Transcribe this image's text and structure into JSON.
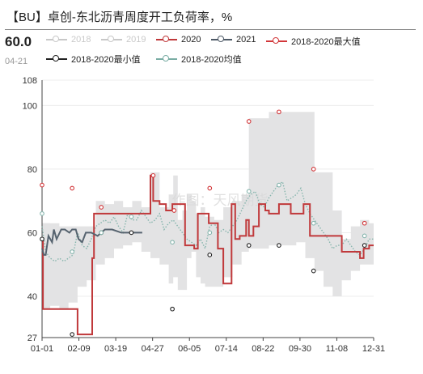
{
  "header": {
    "title": "【BU】卓创-东北沥青周度开工负荷率，%",
    "current_value": "60.0",
    "current_date": "04-21"
  },
  "legend": [
    {
      "label": "2018",
      "color": "#c8c8c8",
      "active": false
    },
    {
      "label": "2019",
      "color": "#c8c8c8",
      "active": false
    },
    {
      "label": "2020",
      "color": "#c0393b",
      "active": true
    },
    {
      "label": "2021",
      "color": "#4d5966",
      "active": true
    },
    {
      "label": "2018-2020最大值",
      "color": "#d2373a",
      "active": true
    },
    {
      "label": "2018-2020最小值",
      "color": "#222222",
      "active": true
    },
    {
      "label": "2018-2020均值",
      "color": "#7aada4",
      "active": true
    }
  ],
  "watermark": "作图：天风期货",
  "colors": {
    "band": "#e3e3e4",
    "s2020": "#c0393b",
    "s2021": "#56636f",
    "mean": "#86b5ad",
    "max_marker": "#d2373a",
    "min_marker": "#222222"
  },
  "chart_data": {
    "type": "line",
    "title": "【BU】卓创-东北沥青周度开工负荷率，%",
    "x_ticks": [
      "01-01",
      "02-09",
      "03-19",
      "04-27",
      "06-05",
      "07-14",
      "08-22",
      "09-30",
      "11-08",
      "12-31"
    ],
    "y_ticks": [
      27,
      40,
      60,
      80,
      100,
      108
    ],
    "ylim": [
      27,
      108
    ],
    "x_unit": "day of year (1 = 01-01, 365 = 12-31)",
    "series": [
      {
        "name": "2020",
        "style": "step-line",
        "x": [
          1,
          2,
          30,
          40,
          47,
          56,
          58,
          88,
          120,
          123,
          130,
          137,
          144,
          158,
          168,
          172,
          184,
          194,
          200,
          209,
          213,
          218,
          225,
          228,
          233,
          239,
          246,
          250,
          261,
          268,
          274,
          288,
          295,
          306,
          316,
          330,
          338,
          350,
          354,
          360,
          365
        ],
        "values": [
          58,
          36,
          36,
          28,
          28,
          52,
          66,
          66,
          78,
          70,
          69,
          67,
          69,
          56,
          55,
          66,
          63,
          55,
          44,
          69,
          58,
          59,
          64,
          59,
          62,
          69,
          67,
          66,
          69,
          69,
          66,
          69,
          59,
          59,
          59,
          54,
          54,
          52,
          55,
          56,
          56
        ]
      },
      {
        "name": "2021",
        "style": "line",
        "x": [
          1,
          3,
          5,
          8,
          12,
          14,
          17,
          22,
          26,
          31,
          34,
          38,
          41,
          45,
          49,
          55,
          62,
          70,
          78,
          88,
          96,
          103,
          111
        ],
        "values": [
          55,
          53,
          53,
          59,
          57,
          61,
          58,
          61,
          61,
          60,
          61,
          61,
          58,
          57,
          60,
          60,
          59,
          61,
          61,
          60,
          60,
          60,
          60
        ]
      },
      {
        "name": "2018-2020均值",
        "style": "dotted",
        "x": [
          1,
          5,
          10,
          15,
          20,
          25,
          30,
          35,
          40,
          45,
          50,
          55,
          60,
          65,
          70,
          75,
          80,
          85,
          90,
          95,
          100,
          105,
          110,
          115,
          120,
          125,
          130,
          135,
          140,
          145,
          150,
          155,
          160,
          165,
          170,
          175,
          180,
          185,
          190,
          195,
          200,
          205,
          210,
          215,
          220,
          225,
          230,
          235,
          240,
          245,
          250,
          255,
          260,
          265,
          270,
          275,
          280,
          285,
          290,
          295,
          300,
          305,
          310,
          315,
          320,
          325,
          330,
          335,
          340,
          345,
          350,
          355,
          360,
          365
        ],
        "values": [
          62,
          54,
          52,
          51,
          52,
          51,
          52,
          53,
          60,
          56,
          55,
          58,
          62,
          63,
          64,
          63,
          65,
          62,
          60,
          66,
          64,
          64,
          67,
          65,
          63,
          64,
          66,
          61,
          63,
          64,
          62,
          60,
          58,
          57,
          56,
          58,
          55,
          62,
          63,
          60,
          61,
          60,
          62,
          64,
          67,
          70,
          72,
          73,
          69,
          68,
          71,
          73,
          75,
          76,
          70,
          71,
          72,
          74,
          69,
          66,
          64,
          62,
          60,
          58,
          55,
          56,
          56,
          58,
          56,
          54,
          53,
          55,
          58,
          58
        ]
      }
    ],
    "band": {
      "name": "2018-2020 range",
      "x": [
        1,
        10,
        20,
        30,
        40,
        50,
        60,
        70,
        80,
        90,
        100,
        110,
        120,
        125,
        130,
        140,
        145,
        150,
        155,
        160,
        165,
        170,
        175,
        180,
        190,
        200,
        210,
        220,
        228,
        235,
        240,
        250,
        260,
        270,
        280,
        290,
        300,
        310,
        320,
        330,
        340,
        350,
        360,
        365
      ],
      "high": [
        63,
        63,
        62,
        62,
        62,
        62,
        70,
        69,
        70,
        68,
        70,
        68,
        79,
        79,
        68,
        72,
        78,
        64,
        67,
        72,
        70,
        66,
        68,
        65,
        64,
        68,
        70,
        72,
        96,
        96,
        96,
        98,
        98,
        98,
        98,
        98,
        79,
        79,
        67,
        58,
        62,
        64,
        63,
        63
      ],
      "low": [
        35,
        36,
        37,
        36,
        38,
        43,
        45,
        50,
        52,
        55,
        56,
        57,
        54,
        52,
        52,
        50,
        44,
        46,
        42,
        42,
        52,
        54,
        46,
        44,
        43,
        43,
        46,
        50,
        54,
        55,
        55,
        55,
        56,
        56,
        56,
        57,
        52,
        48,
        43,
        40,
        45,
        48,
        50,
        50
      ]
    },
    "markers": [
      {
        "series": "2018-2020最大值",
        "x": [
          1,
          34,
          66,
          123,
          146,
          185,
          228,
          261,
          299,
          355
        ],
        "values": [
          75,
          74,
          68,
          78,
          67,
          74,
          95,
          98,
          80,
          63
        ]
      },
      {
        "series": "2018-2020最小值",
        "x": [
          1,
          34,
          66,
          99,
          144,
          185,
          228,
          261,
          299,
          355
        ],
        "values": [
          58,
          28,
          60,
          60,
          36,
          53,
          56,
          56,
          48,
          56
        ]
      },
      {
        "series": "2018-2020均值",
        "x": [
          1,
          34,
          66,
          99,
          144,
          185,
          228,
          261,
          299,
          355
        ],
        "values": [
          66,
          54,
          60,
          65,
          57,
          60,
          73,
          75,
          63,
          59
        ]
      }
    ]
  }
}
